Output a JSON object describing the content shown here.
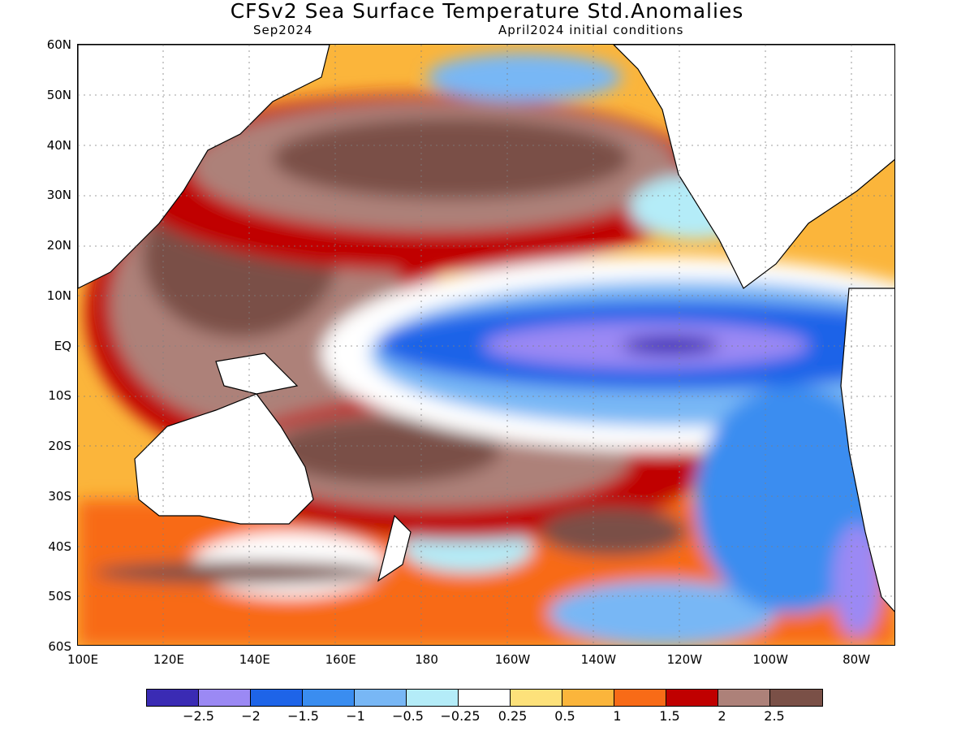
{
  "title": "CFSv2 Sea Surface Temperature Std.Anomalies",
  "subtitle_left": "Sep2024",
  "subtitle_right": "April2024 initial conditions",
  "map": {
    "lat_labels": [
      "60N",
      "50N",
      "40N",
      "30N",
      "20N",
      "10N",
      "EQ",
      "10S",
      "20S",
      "30S",
      "40S",
      "50S",
      "60S"
    ],
    "lon_labels": [
      "100E",
      "120E",
      "140E",
      "160E",
      "180",
      "160W",
      "140W",
      "120W",
      "100W",
      "80W"
    ],
    "lat_range": [
      -60,
      60
    ],
    "lon_range_east": [
      100,
      290
    ],
    "grid": true
  },
  "colorbar": {
    "colors": [
      "#3a2bb4",
      "#9b89f4",
      "#1e64e8",
      "#3a8df0",
      "#78b7f5",
      "#b4ecf8",
      "#ffffff",
      "#fde17a",
      "#fbb53b",
      "#f86b17",
      "#c00000",
      "#ad8179",
      "#7a5047"
    ],
    "labels": [
      "−2.5",
      "−2",
      "−1.5",
      "−1",
      "−0.5",
      "−0.25",
      "0.25",
      "0.5",
      "1",
      "1.5",
      "2",
      "2.5"
    ]
  }
}
